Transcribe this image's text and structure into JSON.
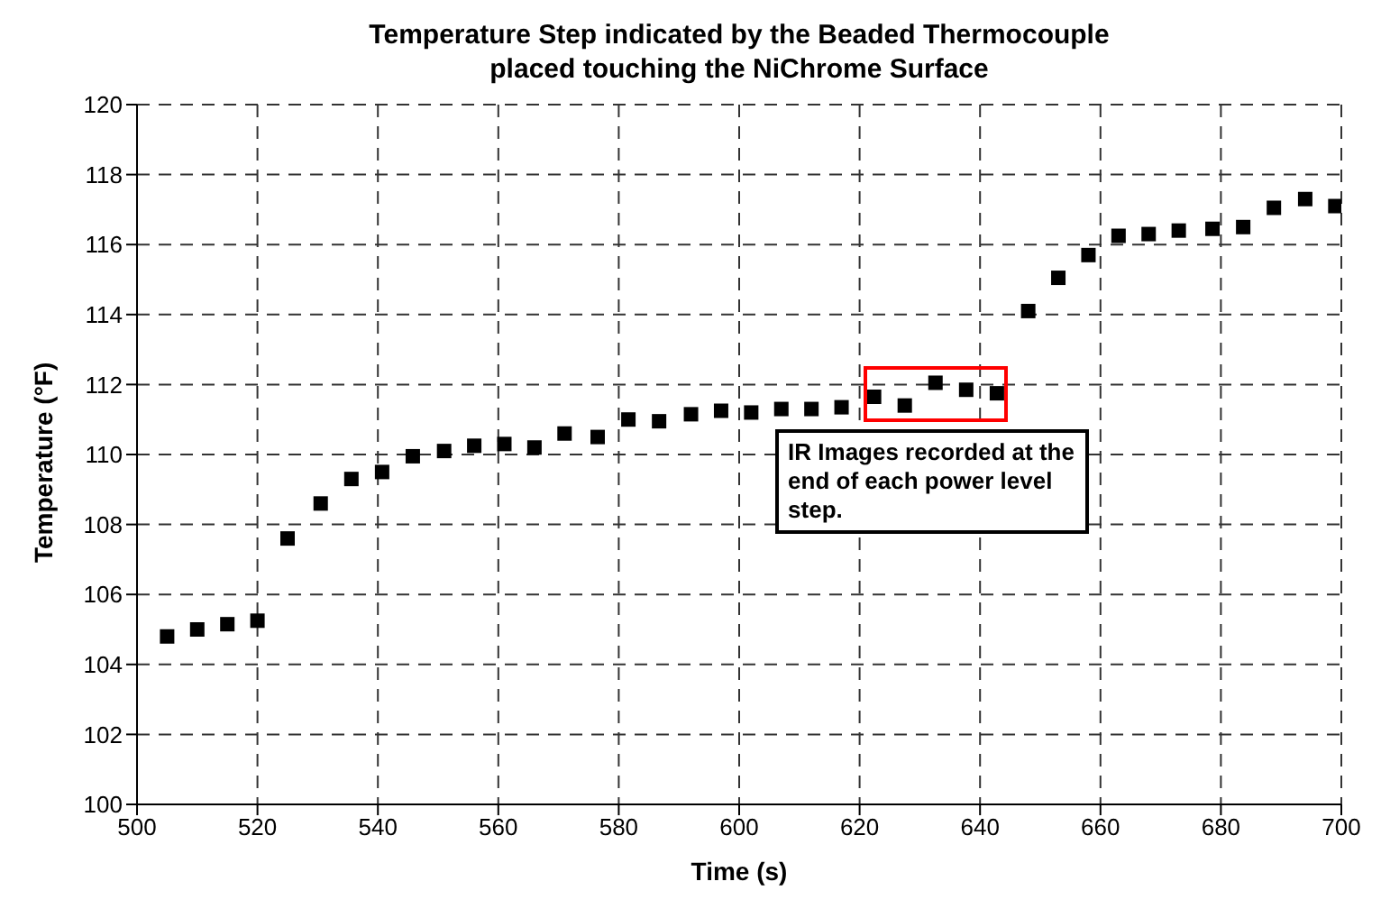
{
  "chart_data": {
    "type": "scatter",
    "title": "Temperature Step indicated by the Beaded Thermocouple\nplaced touching the NiChrome Surface",
    "xlabel": "Time (s)",
    "ylabel": "Temperature (°F)",
    "x": [
      505,
      510,
      515,
      520,
      525,
      530.5,
      535.6,
      540.7,
      545.8,
      551,
      556,
      561,
      566,
      571,
      576.5,
      581.6,
      586.7,
      592,
      597,
      602,
      607,
      612,
      617,
      622.4,
      627.5,
      632.6,
      637.7,
      642.8,
      648,
      653,
      658,
      663,
      668,
      673,
      678.6,
      683.7,
      688.8,
      694,
      699
    ],
    "series": [
      {
        "color": "#000000",
        "values": [
          104.8,
          105.0,
          105.15,
          105.25,
          107.6,
          108.6,
          109.3,
          109.5,
          109.95,
          110.1,
          110.25,
          110.3,
          110.2,
          110.6,
          110.5,
          111.0,
          110.95,
          111.15,
          111.25,
          111.2,
          111.3,
          111.3,
          111.35,
          111.65,
          111.4,
          112.05,
          111.85,
          111.75,
          114.1,
          115.05,
          115.7,
          116.25,
          116.3,
          116.4,
          116.45,
          116.5,
          117.05,
          117.3,
          117.1
        ]
      }
    ],
    "annotations": [
      "IR Images recorded at the end of each power level step."
    ],
    "xlim": [
      500,
      700
    ],
    "xticks": [
      500,
      520,
      540,
      560,
      580,
      600,
      620,
      640,
      660,
      680,
      700
    ],
    "ylim": [
      100,
      120
    ],
    "yticks": [
      100,
      102,
      104,
      106,
      108,
      110,
      112,
      114,
      116,
      118,
      120
    ],
    "grid": true,
    "marker": "square",
    "legend": false
  }
}
